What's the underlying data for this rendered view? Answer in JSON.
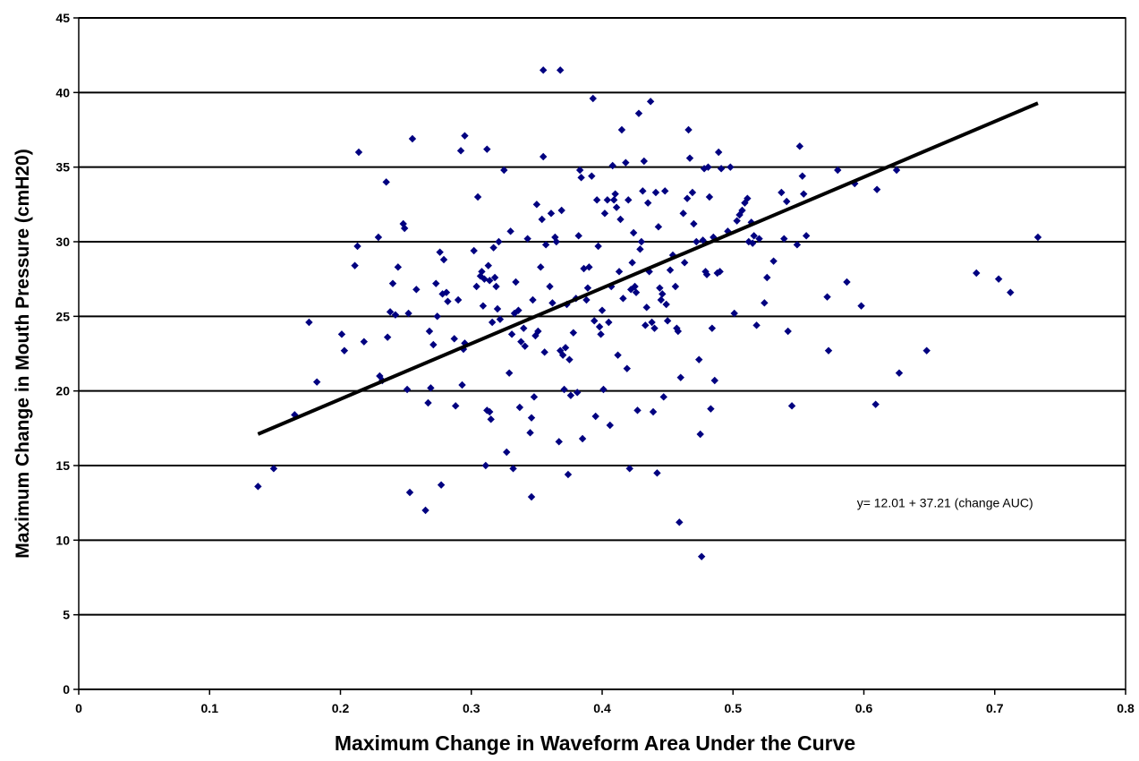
{
  "chart_data": {
    "type": "scatter",
    "title": "",
    "xlabel": "Maximum Change in Waveform Area Under the Curve",
    "ylabel": "Maximum Change in Mouth Pressure (cmH20)",
    "xlim": [
      0,
      0.8
    ],
    "ylim": [
      0,
      45
    ],
    "x_ticks": [
      0,
      0.1,
      0.2,
      0.3,
      0.4,
      0.5,
      0.6,
      0.7,
      0.8
    ],
    "y_ticks": [
      0,
      5,
      10,
      15,
      20,
      25,
      30,
      35,
      40,
      45
    ],
    "x_tick_labels": [
      "0",
      "0.1",
      "0.2",
      "0.3",
      "0.4",
      "0.5",
      "0.6",
      "0.7",
      "0.8"
    ],
    "y_tick_labels": [
      "0",
      "5",
      "10",
      "15",
      "20",
      "25",
      "30",
      "35",
      "40",
      "45"
    ],
    "grid": "horizontal",
    "legend": "none",
    "marker_color": "#000080",
    "line_color": "#000000",
    "annotation": "y= 12.01 + 37.21 (change AUC)",
    "regression": {
      "intercept": 12.01,
      "slope": 37.21,
      "x_start": 0.137,
      "x_end": 0.733
    },
    "points": [
      [
        0.137,
        13.6
      ],
      [
        0.149,
        14.8
      ],
      [
        0.165,
        18.4
      ],
      [
        0.176,
        24.6
      ],
      [
        0.182,
        20.6
      ],
      [
        0.201,
        23.8
      ],
      [
        0.203,
        22.7
      ],
      [
        0.211,
        28.4
      ],
      [
        0.213,
        29.7
      ],
      [
        0.214,
        36.0
      ],
      [
        0.218,
        23.3
      ],
      [
        0.229,
        30.3
      ],
      [
        0.23,
        21.0
      ],
      [
        0.232,
        20.7
      ],
      [
        0.235,
        34.0
      ],
      [
        0.236,
        23.6
      ],
      [
        0.238,
        25.3
      ],
      [
        0.24,
        27.2
      ],
      [
        0.242,
        25.1
      ],
      [
        0.244,
        28.3
      ],
      [
        0.248,
        31.2
      ],
      [
        0.249,
        30.9
      ],
      [
        0.251,
        20.1
      ],
      [
        0.252,
        25.2
      ],
      [
        0.253,
        13.2
      ],
      [
        0.255,
        36.9
      ],
      [
        0.258,
        26.8
      ],
      [
        0.265,
        12.0
      ],
      [
        0.267,
        19.2
      ],
      [
        0.268,
        24.0
      ],
      [
        0.269,
        20.2
      ],
      [
        0.271,
        23.1
      ],
      [
        0.273,
        27.2
      ],
      [
        0.274,
        25.0
      ],
      [
        0.276,
        29.3
      ],
      [
        0.277,
        13.7
      ],
      [
        0.278,
        26.5
      ],
      [
        0.279,
        28.8
      ],
      [
        0.281,
        26.6
      ],
      [
        0.282,
        26.0
      ],
      [
        0.287,
        23.5
      ],
      [
        0.288,
        19.0
      ],
      [
        0.29,
        26.1
      ],
      [
        0.292,
        36.1
      ],
      [
        0.293,
        20.4
      ],
      [
        0.294,
        22.8
      ],
      [
        0.295,
        37.1
      ],
      [
        0.295,
        23.2
      ],
      [
        0.302,
        29.4
      ],
      [
        0.304,
        27.0
      ],
      [
        0.305,
        33.0
      ],
      [
        0.307,
        27.7
      ],
      [
        0.308,
        28.0
      ],
      [
        0.309,
        25.7
      ],
      [
        0.31,
        27.5
      ],
      [
        0.311,
        15.0
      ],
      [
        0.312,
        18.7
      ],
      [
        0.312,
        36.2
      ],
      [
        0.313,
        28.4
      ],
      [
        0.314,
        18.6
      ],
      [
        0.314,
        27.4
      ],
      [
        0.315,
        18.1
      ],
      [
        0.316,
        24.6
      ],
      [
        0.317,
        29.6
      ],
      [
        0.318,
        27.6
      ],
      [
        0.319,
        27.0
      ],
      [
        0.32,
        25.5
      ],
      [
        0.321,
        30.0
      ],
      [
        0.322,
        24.8
      ],
      [
        0.325,
        34.8
      ],
      [
        0.327,
        15.9
      ],
      [
        0.329,
        21.2
      ],
      [
        0.33,
        30.7
      ],
      [
        0.331,
        23.8
      ],
      [
        0.332,
        14.8
      ],
      [
        0.333,
        25.2
      ],
      [
        0.334,
        27.3
      ],
      [
        0.336,
        25.4
      ],
      [
        0.337,
        18.9
      ],
      [
        0.338,
        23.3
      ],
      [
        0.34,
        24.2
      ],
      [
        0.341,
        23.0
      ],
      [
        0.343,
        30.2
      ],
      [
        0.345,
        17.2
      ],
      [
        0.346,
        18.2
      ],
      [
        0.346,
        12.9
      ],
      [
        0.347,
        26.1
      ],
      [
        0.348,
        19.6
      ],
      [
        0.349,
        23.7
      ],
      [
        0.35,
        32.5
      ],
      [
        0.351,
        24.0
      ],
      [
        0.353,
        28.3
      ],
      [
        0.354,
        31.5
      ],
      [
        0.355,
        41.5
      ],
      [
        0.355,
        35.7
      ],
      [
        0.356,
        22.6
      ],
      [
        0.357,
        29.8
      ],
      [
        0.36,
        27.0
      ],
      [
        0.361,
        31.9
      ],
      [
        0.362,
        25.9
      ],
      [
        0.364,
        30.3
      ],
      [
        0.365,
        30.0
      ],
      [
        0.367,
        16.6
      ],
      [
        0.368,
        41.5
      ],
      [
        0.368,
        22.7
      ],
      [
        0.369,
        32.1
      ],
      [
        0.37,
        22.4
      ],
      [
        0.371,
        20.1
      ],
      [
        0.372,
        22.9
      ],
      [
        0.373,
        25.8
      ],
      [
        0.374,
        14.4
      ],
      [
        0.375,
        22.1
      ],
      [
        0.376,
        19.7
      ],
      [
        0.378,
        23.9
      ],
      [
        0.38,
        26.2
      ],
      [
        0.381,
        19.9
      ],
      [
        0.382,
        30.4
      ],
      [
        0.383,
        34.8
      ],
      [
        0.384,
        34.3
      ],
      [
        0.385,
        16.8
      ],
      [
        0.386,
        28.2
      ],
      [
        0.388,
        26.1
      ],
      [
        0.389,
        26.9
      ],
      [
        0.39,
        28.3
      ],
      [
        0.392,
        34.4
      ],
      [
        0.393,
        39.6
      ],
      [
        0.394,
        24.7
      ],
      [
        0.395,
        18.3
      ],
      [
        0.396,
        32.8
      ],
      [
        0.397,
        29.7
      ],
      [
        0.398,
        24.3
      ],
      [
        0.399,
        23.8
      ],
      [
        0.4,
        25.4
      ],
      [
        0.401,
        20.1
      ],
      [
        0.402,
        31.9
      ],
      [
        0.404,
        32.8
      ],
      [
        0.405,
        24.6
      ],
      [
        0.406,
        17.7
      ],
      [
        0.407,
        27.0
      ],
      [
        0.408,
        35.1
      ],
      [
        0.409,
        32.8
      ],
      [
        0.41,
        33.2
      ],
      [
        0.411,
        32.3
      ],
      [
        0.412,
        22.4
      ],
      [
        0.413,
        28.0
      ],
      [
        0.414,
        31.5
      ],
      [
        0.415,
        37.5
      ],
      [
        0.416,
        26.2
      ],
      [
        0.418,
        35.3
      ],
      [
        0.419,
        21.5
      ],
      [
        0.42,
        32.8
      ],
      [
        0.421,
        14.8
      ],
      [
        0.422,
        26.8
      ],
      [
        0.423,
        28.6
      ],
      [
        0.424,
        30.6
      ],
      [
        0.425,
        27.0
      ],
      [
        0.426,
        26.6
      ],
      [
        0.427,
        18.7
      ],
      [
        0.428,
        38.6
      ],
      [
        0.429,
        29.5
      ],
      [
        0.43,
        30.0
      ],
      [
        0.431,
        33.4
      ],
      [
        0.432,
        35.4
      ],
      [
        0.433,
        24.4
      ],
      [
        0.434,
        25.6
      ],
      [
        0.435,
        32.6
      ],
      [
        0.436,
        28.0
      ],
      [
        0.437,
        39.4
      ],
      [
        0.438,
        24.6
      ],
      [
        0.439,
        18.6
      ],
      [
        0.44,
        24.2
      ],
      [
        0.441,
        33.3
      ],
      [
        0.442,
        14.5
      ],
      [
        0.443,
        31.0
      ],
      [
        0.444,
        26.9
      ],
      [
        0.445,
        26.1
      ],
      [
        0.446,
        26.5
      ],
      [
        0.447,
        19.6
      ],
      [
        0.448,
        33.4
      ],
      [
        0.449,
        25.8
      ],
      [
        0.45,
        24.7
      ],
      [
        0.452,
        28.1
      ],
      [
        0.454,
        29.1
      ],
      [
        0.456,
        27.0
      ],
      [
        0.457,
        24.2
      ],
      [
        0.458,
        24.0
      ],
      [
        0.459,
        11.2
      ],
      [
        0.46,
        20.9
      ],
      [
        0.462,
        31.9
      ],
      [
        0.463,
        28.6
      ],
      [
        0.465,
        32.9
      ],
      [
        0.466,
        37.5
      ],
      [
        0.467,
        35.6
      ],
      [
        0.469,
        33.3
      ],
      [
        0.47,
        31.2
      ],
      [
        0.472,
        30.0
      ],
      [
        0.474,
        22.1
      ],
      [
        0.475,
        17.1
      ],
      [
        0.476,
        8.9
      ],
      [
        0.477,
        30.1
      ],
      [
        0.478,
        34.9
      ],
      [
        0.479,
        28.0
      ],
      [
        0.48,
        27.8
      ],
      [
        0.481,
        35.0
      ],
      [
        0.482,
        33.0
      ],
      [
        0.483,
        18.8
      ],
      [
        0.484,
        24.2
      ],
      [
        0.485,
        30.3
      ],
      [
        0.486,
        20.7
      ],
      [
        0.488,
        27.9
      ],
      [
        0.489,
        36.0
      ],
      [
        0.49,
        28.0
      ],
      [
        0.491,
        34.9
      ],
      [
        0.496,
        30.7
      ],
      [
        0.498,
        35.0
      ],
      [
        0.501,
        25.2
      ],
      [
        0.503,
        31.4
      ],
      [
        0.505,
        31.8
      ],
      [
        0.507,
        32.1
      ],
      [
        0.509,
        32.6
      ],
      [
        0.511,
        32.9
      ],
      [
        0.512,
        30.0
      ],
      [
        0.514,
        31.3
      ],
      [
        0.515,
        29.9
      ],
      [
        0.516,
        30.4
      ],
      [
        0.518,
        24.4
      ],
      [
        0.52,
        30.2
      ],
      [
        0.524,
        25.9
      ],
      [
        0.526,
        27.6
      ],
      [
        0.531,
        28.7
      ],
      [
        0.537,
        33.3
      ],
      [
        0.539,
        30.2
      ],
      [
        0.541,
        32.7
      ],
      [
        0.542,
        24.0
      ],
      [
        0.545,
        19.0
      ],
      [
        0.549,
        29.8
      ],
      [
        0.551,
        36.4
      ],
      [
        0.553,
        34.4
      ],
      [
        0.554,
        33.2
      ],
      [
        0.556,
        30.4
      ],
      [
        0.572,
        26.3
      ],
      [
        0.573,
        22.7
      ],
      [
        0.58,
        34.8
      ],
      [
        0.587,
        27.3
      ],
      [
        0.593,
        33.9
      ],
      [
        0.598,
        25.7
      ],
      [
        0.609,
        19.1
      ],
      [
        0.61,
        33.5
      ],
      [
        0.625,
        34.8
      ],
      [
        0.627,
        21.2
      ],
      [
        0.648,
        22.7
      ],
      [
        0.686,
        27.9
      ],
      [
        0.703,
        27.5
      ],
      [
        0.712,
        26.6
      ],
      [
        0.733,
        30.3
      ]
    ]
  }
}
